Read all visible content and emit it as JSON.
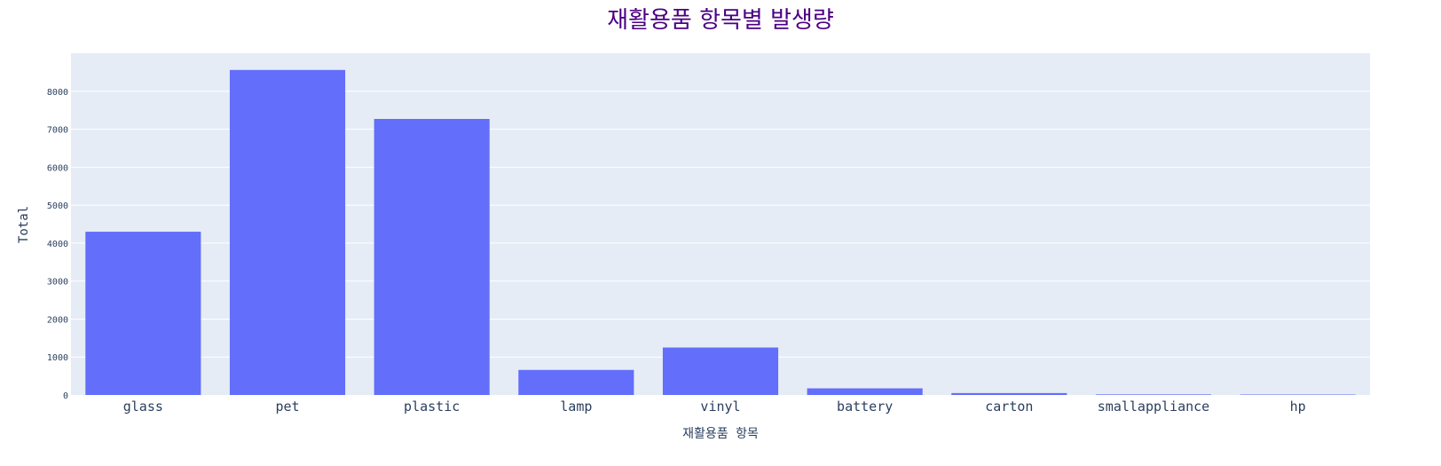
{
  "chart_data": {
    "type": "bar",
    "title": "재활용품 항목별 발생량",
    "xlabel": "재활용품 항목",
    "ylabel": "Total",
    "categories": [
      "glass",
      "pet",
      "plastic",
      "lamp",
      "vinyl",
      "battery",
      "carton",
      "smallappliance",
      "hp"
    ],
    "values": [
      4300,
      8560,
      7270,
      660,
      1250,
      175,
      50,
      15,
      5
    ],
    "ylim": [
      0,
      9000
    ],
    "yticks": [
      0,
      1000,
      2000,
      3000,
      4000,
      5000,
      6000,
      7000,
      8000
    ],
    "grid": true,
    "legend": "none",
    "colors": {
      "bar": "#636efa",
      "plot_bg": "#e5ecf6",
      "grid": "#ffffff",
      "title": "#4b0082",
      "text": "#2a3f5f"
    }
  }
}
